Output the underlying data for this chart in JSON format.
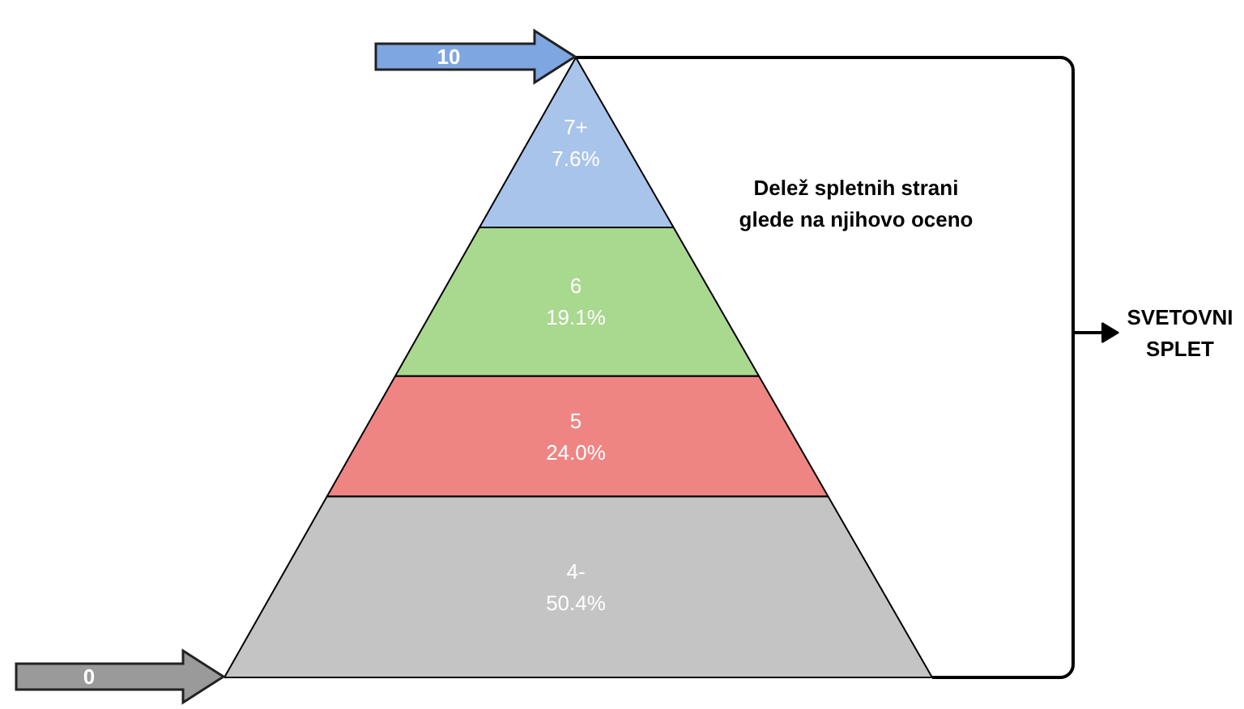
{
  "chart_data": {
    "type": "other",
    "title": "Delež spletnih strani glede na njihovo oceno",
    "categories": [
      "7+",
      "6",
      "5",
      "4-"
    ],
    "values": [
      7.6,
      19.1,
      24.0,
      50.4
    ],
    "value_labels": [
      "7.6%",
      "19.1%",
      "24.0%",
      "50.4%"
    ],
    "colors": [
      "#a9c4eb",
      "#a9d88f",
      "#ef8583",
      "#c4c4c4"
    ],
    "annotations": [
      "10",
      "0",
      "SVETOVNI SPLET"
    ]
  }
}
